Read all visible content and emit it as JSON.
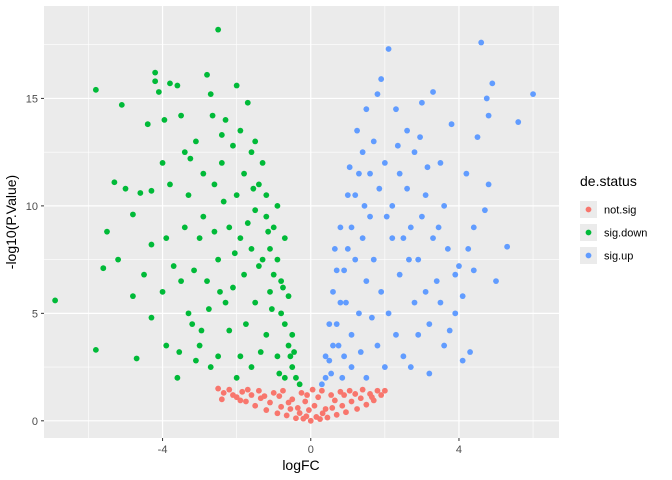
{
  "chart_data": {
    "type": "scatter",
    "title": "",
    "xlabel": "logFC",
    "ylabel": "-log10(P.Value)",
    "xlim": [
      -7.2,
      6.7
    ],
    "ylim": [
      -0.8,
      19.3
    ],
    "x_ticks": [
      -4,
      0,
      4
    ],
    "x_tick_labels": [
      "-4",
      "0",
      "4"
    ],
    "y_ticks": [
      0,
      5,
      10,
      15
    ],
    "y_tick_labels": [
      "0",
      "5",
      "10",
      "15"
    ],
    "grid": true,
    "legend_position": "right",
    "legend_title": "de.status",
    "colors": {
      "panel": "#ebebeb",
      "grid": "#ffffff"
    },
    "series": [
      {
        "name": "not.sig",
        "color": "#F8766D",
        "points": [
          [
            0.0,
            0.0
          ],
          [
            -0.12,
            0.21
          ],
          [
            0.15,
            0.18
          ],
          [
            -0.3,
            0.36
          ],
          [
            0.32,
            0.35
          ],
          [
            -0.55,
            0.55
          ],
          [
            0.58,
            0.6
          ],
          [
            -0.8,
            0.65
          ],
          [
            0.85,
            0.7
          ],
          [
            -1.1,
            0.85
          ],
          [
            1.1,
            0.9
          ],
          [
            -1.35,
            1.05
          ],
          [
            1.35,
            1.05
          ],
          [
            -1.6,
            1.2
          ],
          [
            1.6,
            1.25
          ],
          [
            -1.85,
            1.35
          ],
          [
            1.8,
            1.4
          ],
          [
            -2.2,
            1.45
          ],
          [
            2.0,
            1.4
          ],
          [
            -2.5,
            1.5
          ],
          [
            -0.2,
            0.1
          ],
          [
            0.25,
            0.08
          ],
          [
            -0.4,
            0.12
          ],
          [
            0.45,
            0.15
          ],
          [
            -0.65,
            0.25
          ],
          [
            0.7,
            0.28
          ],
          [
            -0.9,
            0.35
          ],
          [
            0.95,
            0.4
          ],
          [
            -1.2,
            0.5
          ],
          [
            1.25,
            0.55
          ],
          [
            -1.5,
            0.7
          ],
          [
            1.5,
            0.75
          ],
          [
            -1.75,
            0.9
          ],
          [
            1.7,
            0.95
          ],
          [
            -2.0,
            1.1
          ],
          [
            -2.35,
            1.3
          ],
          [
            1.9,
            1.2
          ],
          [
            -0.05,
            0.5
          ],
          [
            0.1,
            0.7
          ],
          [
            -0.15,
            0.9
          ],
          [
            0.2,
            1.1
          ],
          [
            -0.25,
            1.3
          ],
          [
            0.3,
            1.4
          ],
          [
            -0.5,
            1.0
          ],
          [
            0.55,
            1.2
          ],
          [
            -0.75,
            1.4
          ],
          [
            0.8,
            1.35
          ],
          [
            -1.0,
            1.3
          ],
          [
            1.05,
            1.4
          ],
          [
            -1.4,
            1.4
          ],
          [
            1.4,
            1.45
          ],
          [
            -1.7,
            1.45
          ],
          [
            -2.1,
            1.2
          ],
          [
            -0.35,
            0.6
          ],
          [
            0.4,
            0.55
          ],
          [
            -0.6,
            0.85
          ],
          [
            0.65,
            0.95
          ],
          [
            -0.85,
            1.15
          ],
          [
            0.9,
            1.2
          ],
          [
            -1.25,
            1.15
          ],
          [
            1.2,
            1.25
          ],
          [
            -2.4,
            1.0
          ],
          [
            1.65,
            1.1
          ],
          [
            -1.9,
            0.95
          ],
          [
            0.05,
            1.45
          ],
          [
            -0.1,
            1.2
          ]
        ]
      },
      {
        "name": "sig.down",
        "color": "#00BA38",
        "points": [
          [
            -6.9,
            5.6
          ],
          [
            -5.8,
            15.4
          ],
          [
            -5.8,
            3.3
          ],
          [
            -5.5,
            8.8
          ],
          [
            -5.3,
            11.1
          ],
          [
            -5.2,
            7.5
          ],
          [
            -5.1,
            14.7
          ],
          [
            -5.0,
            10.8
          ],
          [
            -4.8,
            5.8
          ],
          [
            -4.8,
            9.6
          ],
          [
            -4.6,
            10.6
          ],
          [
            -4.4,
            13.8
          ],
          [
            -4.3,
            8.2
          ],
          [
            -4.3,
            10.7
          ],
          [
            -4.2,
            16.2
          ],
          [
            -4.2,
            15.8
          ],
          [
            -4.1,
            15.3
          ],
          [
            -4.0,
            12.0
          ],
          [
            -3.9,
            8.5
          ],
          [
            -3.8,
            15.7
          ],
          [
            -3.6,
            15.6
          ],
          [
            -3.5,
            14.2
          ],
          [
            -3.5,
            6.5
          ],
          [
            -3.4,
            12.5
          ],
          [
            -3.3,
            10.5
          ],
          [
            -3.2,
            4.5
          ],
          [
            -3.1,
            13.0
          ],
          [
            -3.0,
            8.5
          ],
          [
            -2.9,
            9.5
          ],
          [
            -2.8,
            16.1
          ],
          [
            -2.7,
            15.2
          ],
          [
            -2.6,
            11.0
          ],
          [
            -2.5,
            18.2
          ],
          [
            -2.5,
            7.5
          ],
          [
            -2.4,
            12.0
          ],
          [
            -2.3,
            14.0
          ],
          [
            -2.2,
            9.0
          ],
          [
            -2.1,
            6.2
          ],
          [
            -2.0,
            15.6
          ],
          [
            -2.0,
            10.5
          ],
          [
            -1.9,
            13.5
          ],
          [
            -1.8,
            11.5
          ],
          [
            -1.7,
            14.8
          ],
          [
            -1.6,
            12.5
          ],
          [
            -1.6,
            8.0
          ],
          [
            -1.5,
            9.8
          ],
          [
            -1.4,
            11.0
          ],
          [
            -1.3,
            7.5
          ],
          [
            -1.2,
            9.5
          ],
          [
            -1.1,
            8.0
          ],
          [
            -1.0,
            9.0
          ],
          [
            -0.9,
            7.5
          ],
          [
            -0.8,
            5.0
          ],
          [
            -0.7,
            4.5
          ],
          [
            -0.6,
            3.5
          ],
          [
            -0.5,
            2.5
          ],
          [
            -0.4,
            2.0
          ],
          [
            -0.3,
            1.7
          ],
          [
            -3.6,
            2.0
          ],
          [
            -3.0,
            3.5
          ],
          [
            -2.7,
            2.5
          ],
          [
            -2.2,
            4.2
          ],
          [
            -1.9,
            3.0
          ],
          [
            -1.5,
            5.5
          ],
          [
            -1.2,
            4.0
          ],
          [
            -0.9,
            3.0
          ],
          [
            -0.7,
            2.0
          ],
          [
            -2.8,
            6.5
          ],
          [
            -2.3,
            5.5
          ],
          [
            -1.8,
            6.8
          ],
          [
            -1.4,
            7.2
          ],
          [
            -1.1,
            6.0
          ],
          [
            -0.8,
            6.5
          ],
          [
            -3.3,
            5.0
          ],
          [
            -3.9,
            3.5
          ],
          [
            -4.0,
            6.0
          ],
          [
            -2.6,
            8.8
          ],
          [
            -1.7,
            9.2
          ],
          [
            -1.2,
            10.5
          ],
          [
            -1.0,
            6.8
          ],
          [
            -0.6,
            5.8
          ],
          [
            -0.5,
            4.0
          ],
          [
            -2.0,
            2.0
          ],
          [
            -1.6,
            2.5
          ],
          [
            -2.5,
            3.0
          ],
          [
            -3.1,
            2.8
          ],
          [
            -4.3,
            4.8
          ],
          [
            -3.7,
            7.2
          ],
          [
            -2.9,
            11.5
          ],
          [
            -2.1,
            12.8
          ],
          [
            -1.5,
            13.0
          ],
          [
            -0.9,
            10.0
          ],
          [
            -0.7,
            8.5
          ],
          [
            -3.4,
            9.0
          ],
          [
            -2.4,
            13.3
          ],
          [
            -1.3,
            12.0
          ],
          [
            -4.5,
            6.8
          ],
          [
            -3.8,
            11.0
          ],
          [
            -2.75,
            5.2
          ],
          [
            -1.9,
            8.5
          ],
          [
            -1.05,
            5.2
          ],
          [
            -0.55,
            3.0
          ],
          [
            -2.35,
            10.2
          ],
          [
            -3.15,
            7.0
          ],
          [
            -4.7,
            2.9
          ],
          [
            -5.6,
            7.1
          ],
          [
            -3.55,
            3.2
          ],
          [
            -2.65,
            14.2
          ],
          [
            -1.35,
            3.2
          ],
          [
            -0.85,
            2.2
          ],
          [
            -1.75,
            4.5
          ],
          [
            -2.45,
            6.0
          ],
          [
            -3.25,
            12.2
          ],
          [
            -3.95,
            14.0
          ],
          [
            -1.55,
            10.8
          ],
          [
            -1.15,
            8.8
          ],
          [
            -0.75,
            6.2
          ],
          [
            -0.45,
            3.2
          ],
          [
            -2.05,
            7.8
          ],
          [
            -2.95,
            4.2
          ]
        ]
      },
      {
        "name": "sig.up",
        "color": "#619CFF",
        "points": [
          [
            0.3,
            1.7
          ],
          [
            0.4,
            2.0
          ],
          [
            0.5,
            2.8
          ],
          [
            0.6,
            3.5
          ],
          [
            0.7,
            4.5
          ],
          [
            0.8,
            5.5
          ],
          [
            0.9,
            7.0
          ],
          [
            1.0,
            8.0
          ],
          [
            1.1,
            9.0
          ],
          [
            1.2,
            10.5
          ],
          [
            1.3,
            11.5
          ],
          [
            1.4,
            12.5
          ],
          [
            1.5,
            14.5
          ],
          [
            1.6,
            9.5
          ],
          [
            1.7,
            13.0
          ],
          [
            1.8,
            15.2
          ],
          [
            1.9,
            15.9
          ],
          [
            2.0,
            12.0
          ],
          [
            2.1,
            17.3
          ],
          [
            2.2,
            10.0
          ],
          [
            2.3,
            14.5
          ],
          [
            2.4,
            11.5
          ],
          [
            2.5,
            8.5
          ],
          [
            2.6,
            13.5
          ],
          [
            2.7,
            9.0
          ],
          [
            2.8,
            12.5
          ],
          [
            2.9,
            7.5
          ],
          [
            3.0,
            14.8
          ],
          [
            3.1,
            10.5
          ],
          [
            3.2,
            4.5
          ],
          [
            3.3,
            15.3
          ],
          [
            3.4,
            6.5
          ],
          [
            3.5,
            12.0
          ],
          [
            3.6,
            3.5
          ],
          [
            3.7,
            8.0
          ],
          [
            3.8,
            13.8
          ],
          [
            3.9,
            5.0
          ],
          [
            4.0,
            7.2
          ],
          [
            4.1,
            2.8
          ],
          [
            4.2,
            11.5
          ],
          [
            4.3,
            3.2
          ],
          [
            4.4,
            7.0
          ],
          [
            4.5,
            13.2
          ],
          [
            4.6,
            17.6
          ],
          [
            4.7,
            9.8
          ],
          [
            4.75,
            15.0
          ],
          [
            4.8,
            14.2
          ],
          [
            4.9,
            15.7
          ],
          [
            5.0,
            6.5
          ],
          [
            5.3,
            8.1
          ],
          [
            5.6,
            13.9
          ],
          [
            6.0,
            15.2
          ],
          [
            0.9,
            3.0
          ],
          [
            1.1,
            4.0
          ],
          [
            1.3,
            5.0
          ],
          [
            1.5,
            6.5
          ],
          [
            1.7,
            7.5
          ],
          [
            1.9,
            6.0
          ],
          [
            2.1,
            5.0
          ],
          [
            2.3,
            4.0
          ],
          [
            2.5,
            3.0
          ],
          [
            2.7,
            2.5
          ],
          [
            2.9,
            4.0
          ],
          [
            3.1,
            6.0
          ],
          [
            1.2,
            7.5
          ],
          [
            1.4,
            8.5
          ],
          [
            1.6,
            11.5
          ],
          [
            1.0,
            10.5
          ],
          [
            0.8,
            9.0
          ],
          [
            0.7,
            7.0
          ],
          [
            0.6,
            6.0
          ],
          [
            0.5,
            4.5
          ],
          [
            0.4,
            3.0
          ],
          [
            2.2,
            8.5
          ],
          [
            2.4,
            6.8
          ],
          [
            2.6,
            10.8
          ],
          [
            2.8,
            5.5
          ],
          [
            3.0,
            9.5
          ],
          [
            3.3,
            8.5
          ],
          [
            3.6,
            10.0
          ],
          [
            3.9,
            6.8
          ],
          [
            4.1,
            5.8
          ],
          [
            4.4,
            9.0
          ],
          [
            1.8,
            3.5
          ],
          [
            2.0,
            2.5
          ],
          [
            1.5,
            2.0
          ],
          [
            1.1,
            2.5
          ],
          [
            0.85,
            2.0
          ],
          [
            3.5,
            5.5
          ],
          [
            3.2,
            2.2
          ],
          [
            4.8,
            11.0
          ],
          [
            2.35,
            12.8
          ],
          [
            1.25,
            13.5
          ],
          [
            1.45,
            10.0
          ],
          [
            0.95,
            5.5
          ],
          [
            0.75,
            3.5
          ],
          [
            0.55,
            2.2
          ],
          [
            2.05,
            9.5
          ],
          [
            2.65,
            7.5
          ],
          [
            3.15,
            11.8
          ],
          [
            3.75,
            4.2
          ],
          [
            4.25,
            8.0
          ],
          [
            1.65,
            4.8
          ],
          [
            1.85,
            10.8
          ],
          [
            2.95,
            13.2
          ],
          [
            3.45,
            9.0
          ],
          [
            1.35,
            3.2
          ],
          [
            0.65,
            8.0
          ],
          [
            1.05,
            11.8
          ]
        ]
      }
    ]
  }
}
